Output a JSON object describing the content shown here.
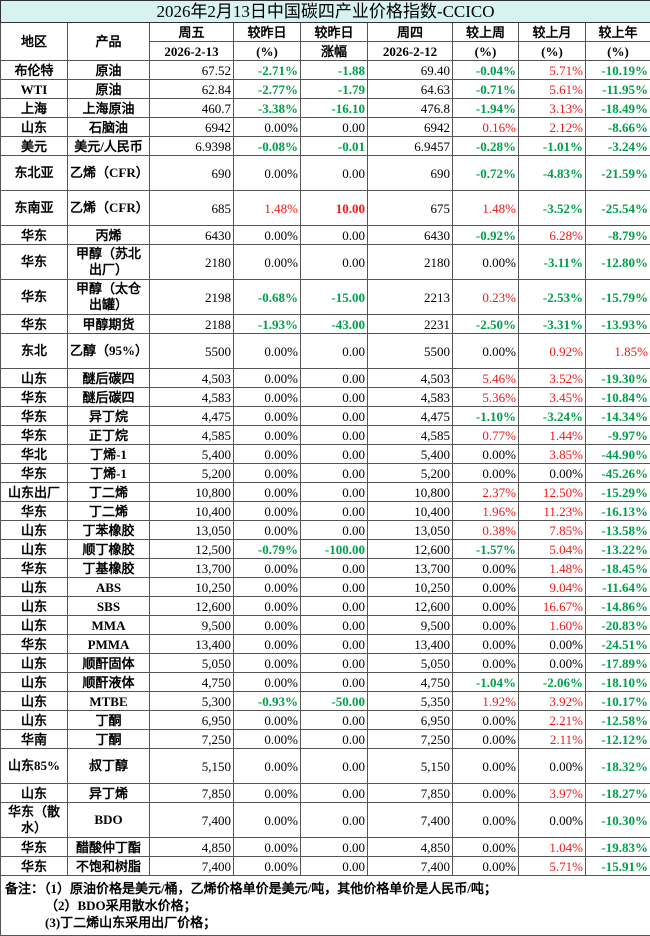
{
  "title": "2026年2月13日中国碳四产业价格指数-CCICO",
  "headers": {
    "region": "地区",
    "product": "产品",
    "fri": "周五",
    "fri_date": "2026-2-13",
    "dod_pct": "较昨日",
    "dod_pct_unit": "(%)",
    "dod_abs": "较昨日",
    "dod_abs_unit": "涨幅",
    "thu": "周四",
    "thu_date": "2026-2-12",
    "wow": "较上周",
    "wow_unit": "(%)",
    "mom": "较上月",
    "mom_unit": "(%)",
    "yoy": "较上年",
    "yoy_unit": "(%)"
  },
  "colors": {
    "up": "#f01818",
    "down": "#00a04a",
    "title_bg": "#d6f3f1"
  },
  "rows": [
    [
      "布伦特",
      "原油",
      "67.52",
      "-2.71%",
      "-1.88",
      "69.40",
      "-0.04%",
      "5.71%",
      "-10.19%"
    ],
    [
      "WTI",
      "原油",
      "62.84",
      "-2.77%",
      "-1.79",
      "64.63",
      "-0.71%",
      "5.61%",
      "-11.95%"
    ],
    [
      "上海",
      "上海原油",
      "460.7",
      "-3.38%",
      "-16.10",
      "476.8",
      "-1.94%",
      "3.13%",
      "-18.49%"
    ],
    [
      "山东",
      "石脑油",
      "6942",
      "0.00%",
      "0.00",
      "6942",
      "0.16%",
      "2.12%",
      "-8.66%"
    ],
    [
      "美元",
      "美元/人民币",
      "6.9398",
      "-0.08%",
      "-0.01",
      "6.9457",
      "-0.28%",
      "-1.01%",
      "-3.24%"
    ],
    [
      "东北亚",
      "乙烯（CFR）",
      "690",
      "0.00%",
      "0.00",
      "690",
      "-0.72%",
      "-4.83%",
      "-21.59%"
    ],
    [
      "东南亚",
      "乙烯（CFR）",
      "685",
      "1.48%",
      "10.00",
      "675",
      "1.48%",
      "-3.52%",
      "-25.54%"
    ],
    [
      "华东",
      "丙烯",
      "6430",
      "0.00%",
      "0.00",
      "6430",
      "-0.92%",
      "6.28%",
      "-8.79%"
    ],
    [
      "华东",
      "甲醇（苏北出厂）",
      "2180",
      "0.00%",
      "0.00",
      "2180",
      "0.00%",
      "-3.11%",
      "-12.80%"
    ],
    [
      "华东",
      "甲醇（太仓出罐）",
      "2198",
      "-0.68%",
      "-15.00",
      "2213",
      "0.23%",
      "-2.53%",
      "-15.79%"
    ],
    [
      "华东",
      "甲醇期货",
      "2188",
      "-1.93%",
      "-43.00",
      "2231",
      "-2.50%",
      "-3.31%",
      "-13.93%"
    ],
    [
      "东北",
      "乙醇（95%）",
      "5500",
      "0.00%",
      "0.00",
      "5500",
      "0.00%",
      "0.92%",
      "1.85%"
    ],
    [
      "山东",
      "醚后碳四",
      "4,503",
      "0.00%",
      "0.00",
      "4,503",
      "5.46%",
      "3.52%",
      "-19.30%"
    ],
    [
      "华东",
      "醚后碳四",
      "4,583",
      "0.00%",
      "0.00",
      "4,583",
      "5.36%",
      "3.45%",
      "-10.84%"
    ],
    [
      "华东",
      "异丁烷",
      "4,475",
      "0.00%",
      "0.00",
      "4,475",
      "-1.10%",
      "-3.24%",
      "-14.34%"
    ],
    [
      "华东",
      "正丁烷",
      "4,585",
      "0.00%",
      "0.00",
      "4,585",
      "0.77%",
      "1.44%",
      "-9.97%"
    ],
    [
      "华北",
      "丁烯-1",
      "5,400",
      "0.00%",
      "0.00",
      "5,400",
      "0.00%",
      "3.85%",
      "-44.90%"
    ],
    [
      "华东",
      "丁烯-1",
      "5,200",
      "0.00%",
      "0.00",
      "5,200",
      "0.00%",
      "0.00%",
      "-45.26%"
    ],
    [
      "山东出厂",
      "丁二烯",
      "10,800",
      "0.00%",
      "0.00",
      "10,800",
      "2.37%",
      "12.50%",
      "-15.29%"
    ],
    [
      "华东",
      "丁二烯",
      "10,400",
      "0.00%",
      "0.00",
      "10,400",
      "1.96%",
      "11.23%",
      "-16.13%"
    ],
    [
      "山东",
      "丁苯橡胶",
      "13,050",
      "0.00%",
      "0.00",
      "13,050",
      "0.38%",
      "7.85%",
      "-13.58%"
    ],
    [
      "山东",
      "顺丁橡胶",
      "12,500",
      "-0.79%",
      "-100.00",
      "12,600",
      "-1.57%",
      "5.04%",
      "-13.22%"
    ],
    [
      "华东",
      "丁基橡胶",
      "13,700",
      "0.00%",
      "0.00",
      "13,700",
      "0.00%",
      "1.48%",
      "-18.45%"
    ],
    [
      "山东",
      "ABS",
      "10,250",
      "0.00%",
      "0.00",
      "10,250",
      "0.00%",
      "9.04%",
      "-11.64%"
    ],
    [
      "山东",
      "SBS",
      "12,600",
      "0.00%",
      "0.00",
      "12,600",
      "0.00%",
      "16.67%",
      "-14.86%"
    ],
    [
      "山东",
      "MMA",
      "9,500",
      "0.00%",
      "0.00",
      "9,500",
      "0.00%",
      "1.60%",
      "-20.83%"
    ],
    [
      "华东",
      "PMMA",
      "13,400",
      "0.00%",
      "0.00",
      "13,400",
      "0.00%",
      "0.00%",
      "-24.51%"
    ],
    [
      "山东",
      "顺酐固体",
      "5,050",
      "0.00%",
      "0.00",
      "5,050",
      "0.00%",
      "0.00%",
      "-17.89%"
    ],
    [
      "山东",
      "顺酐液体",
      "4,750",
      "0.00%",
      "0.00",
      "4,750",
      "-1.04%",
      "-2.06%",
      "-18.10%"
    ],
    [
      "山东",
      "MTBE",
      "5,300",
      "-0.93%",
      "-50.00",
      "5,350",
      "1.92%",
      "3.92%",
      "-10.17%"
    ],
    [
      "山东",
      "丁酮",
      "6,950",
      "0.00%",
      "0.00",
      "6,950",
      "0.00%",
      "2.21%",
      "-12.58%"
    ],
    [
      "华南",
      "丁酮",
      "7,250",
      "0.00%",
      "0.00",
      "7,250",
      "0.00%",
      "2.11%",
      "-12.12%"
    ],
    [
      "山东85%",
      "叔丁醇",
      "5,150",
      "0.00%",
      "0.00",
      "5,150",
      "0.00%",
      "0.00%",
      "-18.32%"
    ],
    [
      "山东",
      "异丁烯",
      "7,850",
      "0.00%",
      "0.00",
      "7,850",
      "0.00%",
      "3.97%",
      "-18.27%"
    ],
    [
      "华东（散水）",
      "BDO",
      "7,400",
      "0.00%",
      "0.00",
      "7,400",
      "0.00%",
      "0.00%",
      "-10.30%"
    ],
    [
      "华东",
      "醋酸仲丁酯",
      "4,850",
      "0.00%",
      "0.00",
      "4,850",
      "0.00%",
      "1.04%",
      "-19.83%"
    ],
    [
      "华东",
      "不饱和树脂",
      "7,400",
      "0.00%",
      "0.00",
      "7,400",
      "0.00%",
      "5.71%",
      "-15.91%"
    ]
  ],
  "notes": {
    "n1": "备注：（1）原油价格是美元/桶，乙烯价格单价是美元/吨，其他价格单价是人民币/吨；",
    "n2": "（2）BDO采用散水价格；",
    "n3": "(3)丁二烯山东采用出厂价格；"
  }
}
